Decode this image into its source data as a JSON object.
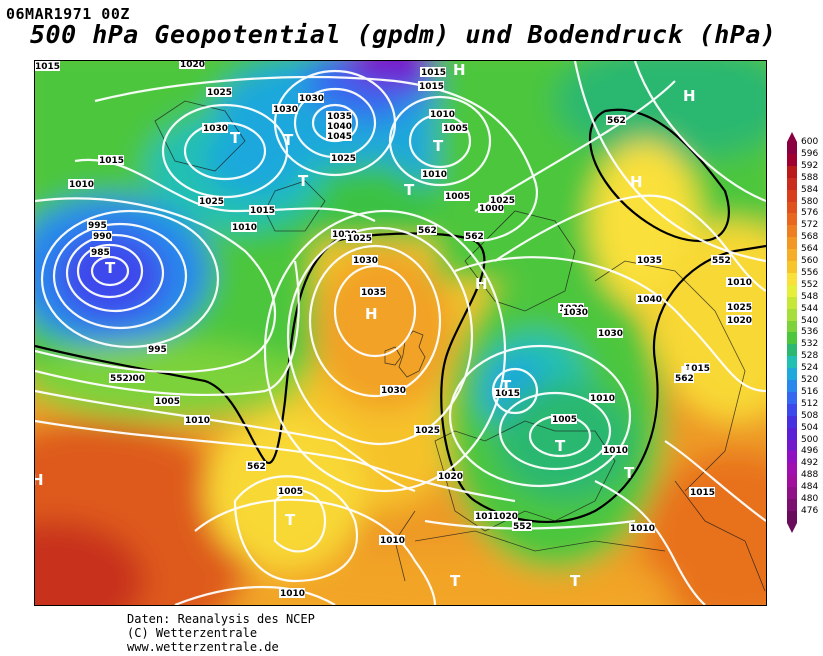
{
  "header": {
    "date": "06MAR1971 00Z",
    "title": "500 hPa Geopotential (gpdm) und Bodendruck (hPa)"
  },
  "credits": {
    "line1": "Daten: Reanalysis des NCEP",
    "line2": "(C) Wetterzentrale",
    "line3": "www.wetterzentrale.de"
  },
  "legend": {
    "values": [
      "600",
      "596",
      "592",
      "588",
      "584",
      "580",
      "576",
      "572",
      "568",
      "564",
      "560",
      "556",
      "552",
      "548",
      "544",
      "540",
      "536",
      "532",
      "528",
      "524",
      "520",
      "516",
      "512",
      "508",
      "504",
      "500",
      "496",
      "492",
      "488",
      "484",
      "480",
      "476"
    ],
    "colors": [
      "#8b0040",
      "#a00030",
      "#b81a1a",
      "#c82c1c",
      "#d63e1c",
      "#e0521c",
      "#e8661e",
      "#ee7e22",
      "#f29624",
      "#f6ae28",
      "#f8c42c",
      "#fae03a",
      "#e6f03a",
      "#c6e638",
      "#a6de3c",
      "#7cd23a",
      "#4cc63c",
      "#2cb870",
      "#22c0b2",
      "#1ea8dc",
      "#2888ec",
      "#3468f0",
      "#3c48ec",
      "#4630e0",
      "#5a20d6",
      "#7418cc",
      "#9010c2",
      "#a010b0",
      "#a0109c",
      "#901088",
      "#7c1070",
      "#6a0c5c"
    ]
  },
  "map": {
    "pressure_labels": [
      "1015",
      "1020",
      "1025",
      "1030",
      "1030",
      "1030",
      "1015",
      "1015",
      "1010",
      "1005",
      "1035",
      "1040",
      "1045",
      "1025",
      "1020",
      "1025",
      "1015",
      "1015",
      "1010",
      "1010",
      "1010",
      "1005",
      "1000",
      "995",
      "990",
      "985",
      "995",
      "1000",
      "1005",
      "1010",
      "1025",
      "1030",
      "1035",
      "1030",
      "1025",
      "1020",
      "1015",
      "1035",
      "1040",
      "1030",
      "1030",
      "1025",
      "1020",
      "1010",
      "1005",
      "1010",
      "1010",
      "1015",
      "1015",
      "1020",
      "1005",
      "1010",
      "1010",
      "1010",
      "1015",
      "1025",
      "1030",
      "1025",
      "1010",
      "1010"
    ],
    "height_labels": [
      "552",
      "562",
      "562",
      "562",
      "552",
      "552",
      "562",
      "562"
    ],
    "pressure_centers": [
      "H",
      "H",
      "T",
      "T",
      "T",
      "T",
      "T",
      "T",
      "H",
      "H",
      "H",
      "H",
      "T",
      "T",
      "T",
      "T",
      "H",
      "T",
      "T",
      "T"
    ]
  }
}
